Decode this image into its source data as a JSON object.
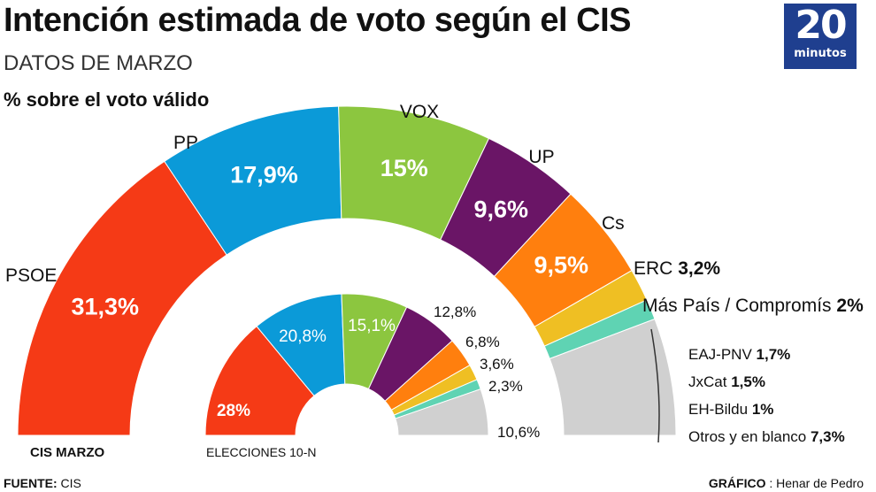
{
  "header": {
    "title": "Intención estimada de voto según el CIS",
    "subtitle": "DATOS DE MARZO",
    "unit": "% sobre el voto válido"
  },
  "logo": {
    "number": "20",
    "word": "minutos"
  },
  "footer": {
    "source_label": "FUENTE:",
    "source_value": " CIS",
    "credit_label": "GRÁFICO",
    "credit_value": " : Henar de Pedro"
  },
  "chart_data": [
    {
      "type": "pie",
      "name": "CIS MARZO",
      "labels": [
        "PSOE",
        "PP",
        "VOX",
        "UP",
        "Cs",
        "ERC",
        "Más País / Compromís",
        "Otros"
      ],
      "values": [
        31.3,
        17.9,
        15,
        9.6,
        9.5,
        3.2,
        2,
        11.5
      ],
      "value_labels": [
        "31,3%",
        "17,9%",
        "15%",
        "9,6%",
        "9,5%",
        "3,2%",
        "2%",
        ""
      ],
      "breakdown": [
        {
          "label": "EAJ-PNV",
          "value": "1,7%"
        },
        {
          "label": "JxCat",
          "value": "1,5%"
        },
        {
          "label": "EH-Bildu",
          "value": "1%"
        },
        {
          "label": "Otros y en blanco",
          "value": "7,3%"
        }
      ]
    },
    {
      "type": "pie",
      "name": "ELECCIONES 10-N",
      "labels": [
        "PSOE",
        "PP",
        "VOX",
        "UP",
        "Cs",
        "ERC",
        "Más País / Compromís",
        "Otros"
      ],
      "values": [
        28,
        20.8,
        15.1,
        12.8,
        6.8,
        3.6,
        2.3,
        10.6
      ],
      "value_labels": [
        "28%",
        "20,8%",
        "15,1%",
        "12,8%",
        "6,8%",
        "3,6%",
        "2,3%",
        "10,6%"
      ]
    }
  ],
  "colors": [
    "#f53a16",
    "#0b9ad8",
    "#8cc63f",
    "#6a1566",
    "#ff7f0e",
    "#efbf23",
    "#5fd3b3",
    "#d0d0d0"
  ]
}
